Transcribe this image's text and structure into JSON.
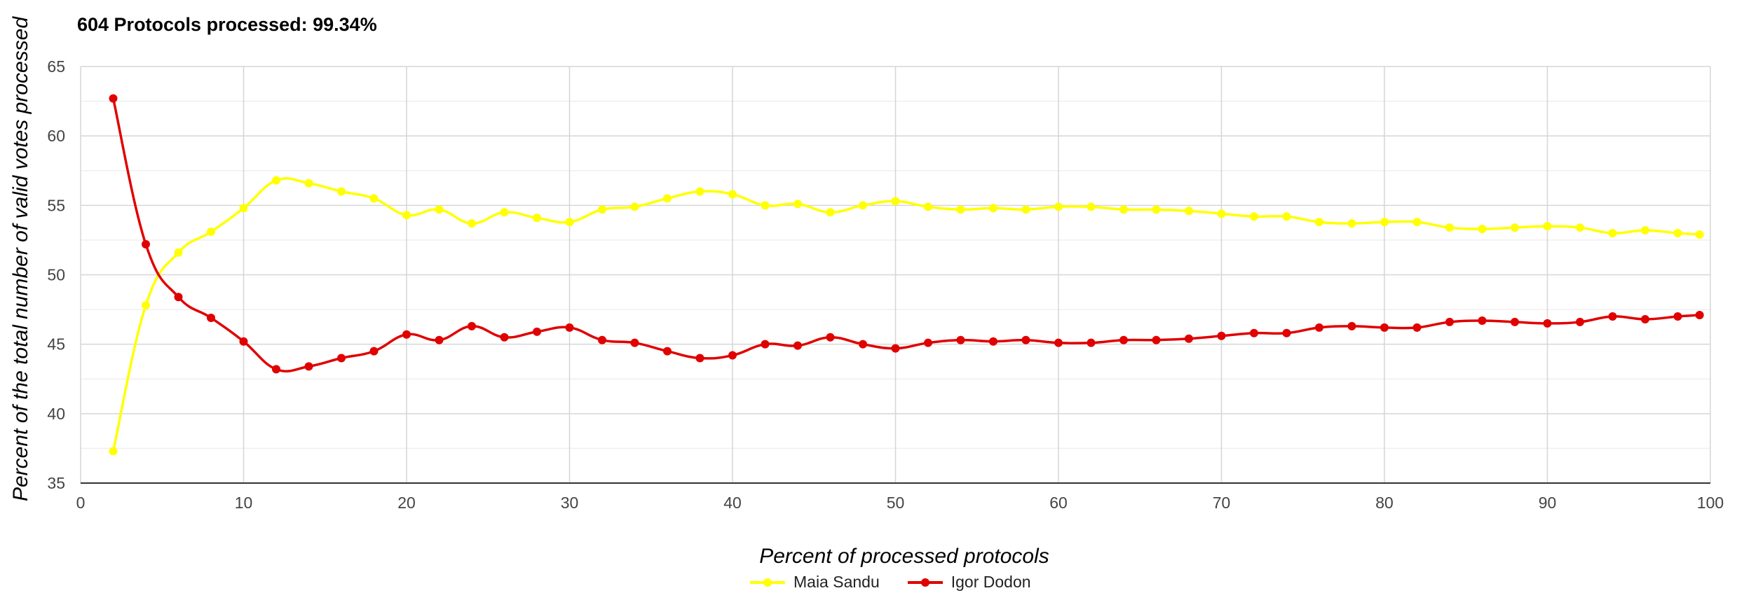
{
  "chart_data": {
    "type": "line",
    "title": "604 Protocols processed: 99.34%",
    "xlabel": "Percent of processed protocols",
    "ylabel": "Percent of the total number of valid votes processed",
    "xlim": [
      0,
      100
    ],
    "ylim": [
      35,
      65
    ],
    "x_ticks": [
      "0",
      "10",
      "20",
      "30",
      "40",
      "50",
      "60",
      "70",
      "80",
      "90",
      "100"
    ],
    "y_ticks": [
      "35",
      "40",
      "45",
      "50",
      "55",
      "60",
      "65"
    ],
    "grid": true,
    "legend_position": "bottom",
    "x": [
      2,
      4,
      6,
      8,
      10,
      12,
      14,
      16,
      18,
      20,
      22,
      24,
      26,
      28,
      30,
      32,
      34,
      36,
      38,
      40,
      42,
      44,
      46,
      48,
      50,
      52,
      54,
      56,
      58,
      60,
      62,
      64,
      66,
      68,
      70,
      72,
      74,
      76,
      78,
      80,
      82,
      84,
      86,
      88,
      90,
      92,
      94,
      96,
      98,
      99.34
    ],
    "series": [
      {
        "name": "Maia Sandu",
        "color": "#ffff00",
        "values": [
          37.3,
          47.8,
          51.6,
          53.1,
          54.8,
          56.8,
          56.6,
          56.0,
          55.5,
          54.3,
          54.7,
          53.7,
          54.5,
          54.1,
          53.8,
          54.7,
          54.9,
          55.5,
          56.0,
          55.8,
          55.0,
          55.1,
          54.5,
          55.0,
          55.3,
          54.9,
          54.7,
          54.8,
          54.7,
          54.9,
          54.9,
          54.7,
          54.7,
          54.6,
          54.4,
          54.2,
          54.2,
          53.8,
          53.7,
          53.8,
          53.8,
          53.4,
          53.3,
          53.4,
          53.5,
          53.4,
          53.0,
          53.2,
          53.0,
          52.9
        ]
      },
      {
        "name": "Igor Dodon",
        "color": "#e00000",
        "values": [
          62.7,
          52.2,
          48.4,
          46.9,
          45.2,
          43.2,
          43.4,
          44.0,
          44.5,
          45.7,
          45.3,
          46.3,
          45.5,
          45.9,
          46.2,
          45.3,
          45.1,
          44.5,
          44.0,
          44.2,
          45.0,
          44.9,
          45.5,
          45.0,
          44.7,
          45.1,
          45.3,
          45.2,
          45.3,
          45.1,
          45.1,
          45.3,
          45.3,
          45.4,
          45.6,
          45.8,
          45.8,
          46.2,
          46.3,
          46.2,
          46.2,
          46.6,
          46.7,
          46.6,
          46.5,
          46.6,
          47.0,
          46.8,
          47.0,
          47.1
        ]
      }
    ]
  }
}
